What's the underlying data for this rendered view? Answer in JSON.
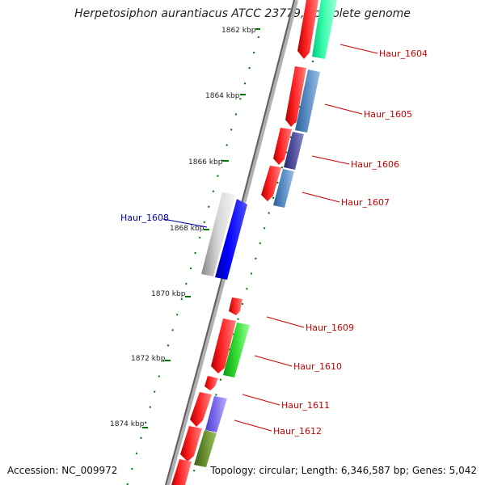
{
  "title": "Herpetosiphon aurantiacus ATCC 23779, complete genome",
  "footer": {
    "accession": "Accession: NC_009972",
    "stats": "Topology: circular; Length: 6,346,587 bp; Genes: 5,042"
  },
  "ticks": [
    "1862 kbp",
    "1864 kbp",
    "1866 kbp",
    "1868 kbp",
    "1870 kbp",
    "1872 kbp",
    "1874 kbp"
  ],
  "genes": [
    {
      "label": "Haur_1604",
      "color": "#cc0000"
    },
    {
      "label": "Haur_1605",
      "color": "#cc0000"
    },
    {
      "label": "Haur_1606",
      "color": "#cc0000"
    },
    {
      "label": "Haur_1607",
      "color": "#cc0000"
    },
    {
      "label": "Haur_1608",
      "color": "#0000aa"
    },
    {
      "label": "Haur_1609",
      "color": "#cc0000"
    },
    {
      "label": "Haur_1610",
      "color": "#cc0000"
    },
    {
      "label": "Haur_1611",
      "color": "#cc0000"
    },
    {
      "label": "Haur_1612",
      "color": "#cc0000"
    }
  ],
  "colors": {
    "red_feature": "#ff1a1a",
    "dotted_track": "#007700",
    "backbone": "#808080"
  }
}
